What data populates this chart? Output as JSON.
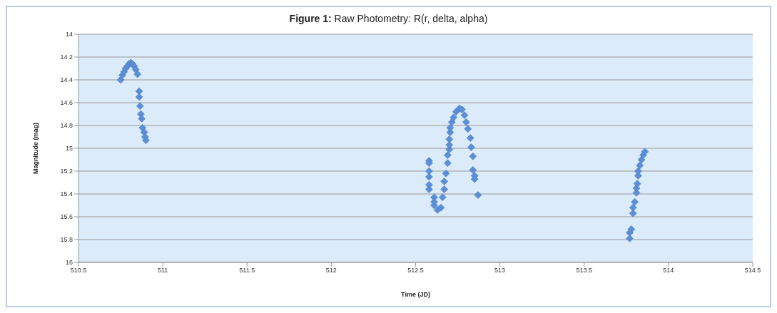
{
  "chart_data": {
    "type": "scatter",
    "title": "Figure 1: Raw Photometry: R(r, delta, alpha)",
    "xlabel": "Time (JD)",
    "ylabel": "Magnitude (mag)",
    "xlim": [
      510.5,
      514.5
    ],
    "xticks": [
      510.5,
      511,
      511.5,
      512,
      512.5,
      513,
      513.5,
      514,
      514.5
    ],
    "ylim": [
      16,
      14
    ],
    "yticks": [
      14,
      14.2,
      14.4,
      14.6,
      14.8,
      15,
      15.2,
      15.4,
      15.6,
      15.8,
      16
    ],
    "grid": "y",
    "legend": false,
    "marker": "diamond",
    "series": [
      {
        "color": "#5b8fd6",
        "x": [
          510.75,
          510.76,
          510.77,
          510.78,
          510.79,
          510.8,
          510.81,
          510.82,
          510.83,
          510.84,
          510.85,
          510.86,
          510.86,
          510.865,
          510.87,
          510.875,
          510.88,
          510.89,
          510.895,
          510.9,
          512.58,
          512.58,
          512.58,
          512.58,
          512.58,
          512.58,
          512.61,
          512.61,
          512.61,
          512.63,
          512.65,
          512.66,
          512.67,
          512.67,
          512.68,
          512.69,
          512.69,
          512.7,
          512.7,
          512.7,
          512.705,
          512.705,
          512.715,
          512.725,
          512.74,
          512.76,
          512.775,
          512.79,
          512.8,
          512.81,
          512.825,
          512.83,
          512.84,
          512.84,
          512.85,
          512.85,
          512.87,
          513.77,
          513.77,
          513.78,
          513.79,
          513.79,
          513.8,
          513.81,
          513.81,
          513.815,
          513.82,
          513.82,
          513.83,
          513.84,
          513.85,
          513.86
        ],
        "values": [
          14.4,
          14.36,
          14.33,
          14.3,
          14.28,
          14.26,
          14.25,
          14.26,
          14.28,
          14.31,
          14.35,
          14.5,
          14.55,
          14.63,
          14.7,
          14.74,
          14.82,
          14.86,
          14.9,
          14.93,
          15.11,
          15.13,
          15.2,
          15.25,
          15.32,
          15.36,
          15.43,
          15.47,
          15.5,
          15.54,
          15.52,
          15.43,
          15.36,
          15.29,
          15.22,
          15.13,
          15.06,
          15.01,
          14.97,
          14.92,
          14.86,
          14.82,
          14.77,
          14.73,
          14.68,
          14.65,
          14.66,
          14.71,
          14.77,
          14.83,
          14.91,
          14.99,
          15.07,
          15.19,
          15.24,
          15.27,
          15.41,
          15.79,
          15.74,
          15.71,
          15.57,
          15.52,
          15.47,
          15.39,
          15.35,
          15.31,
          15.24,
          15.2,
          15.15,
          15.1,
          15.06,
          15.03
        ]
      }
    ]
  }
}
